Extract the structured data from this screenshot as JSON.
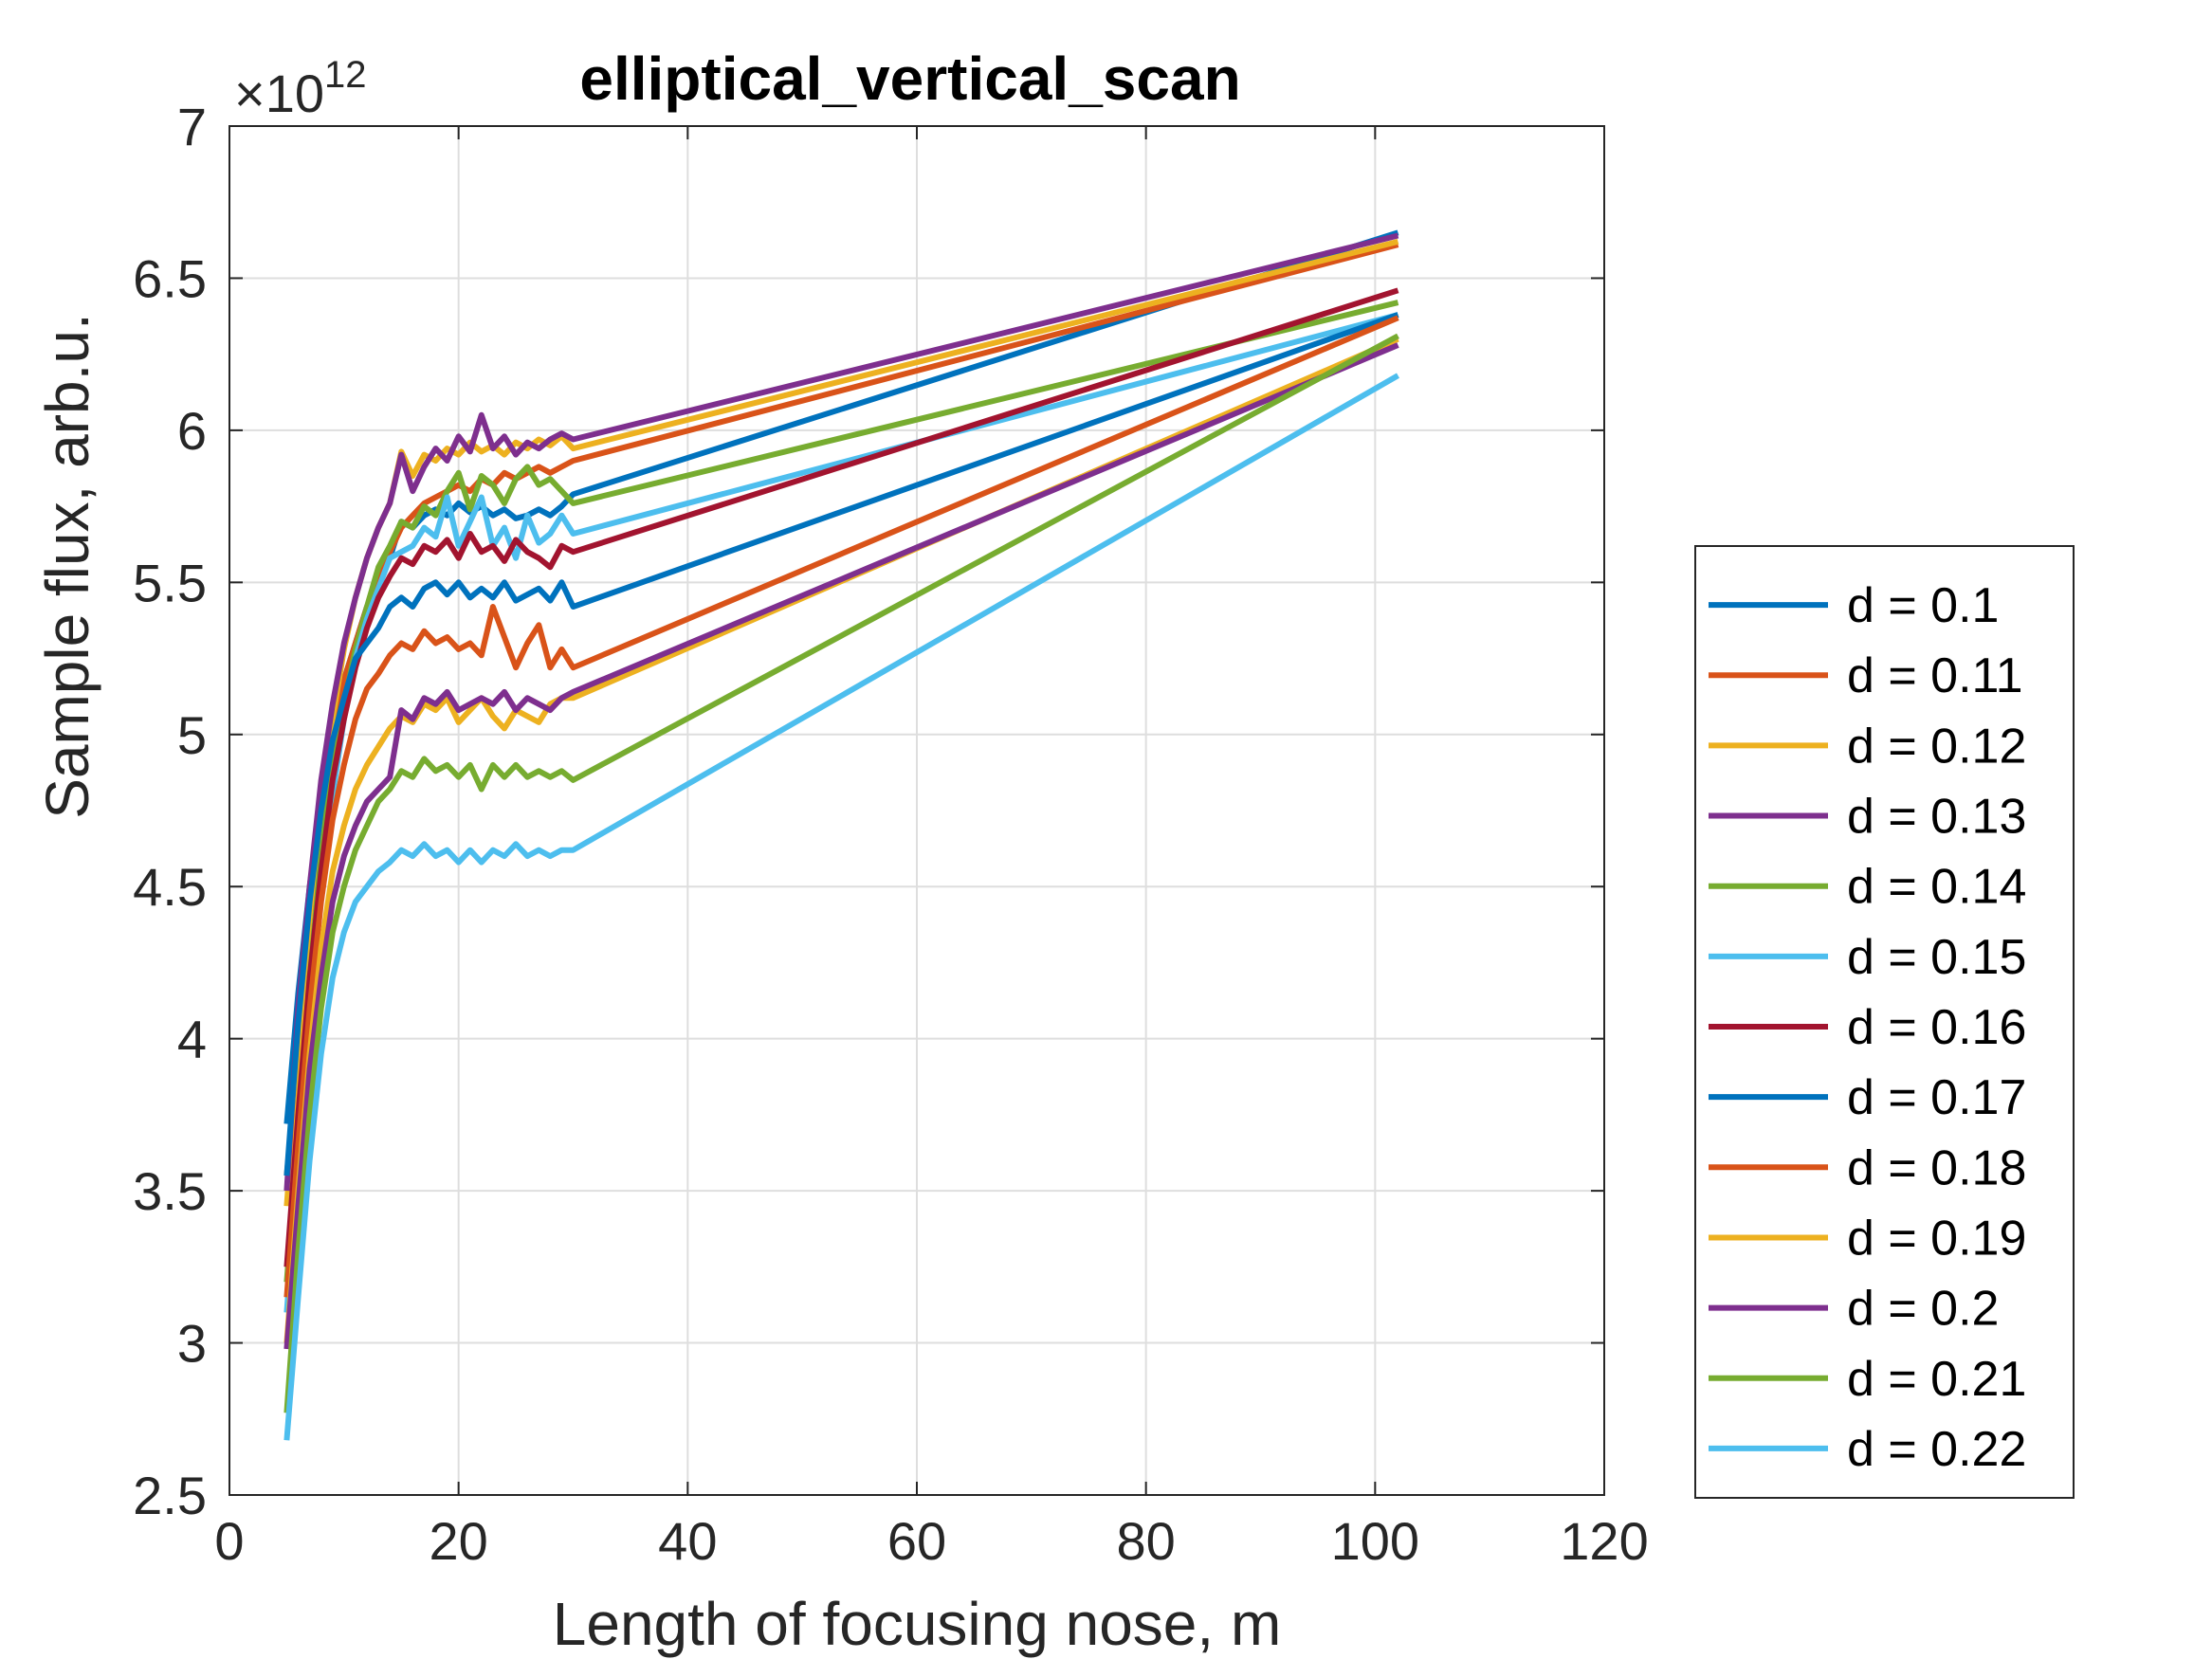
{
  "chart_data": {
    "type": "line",
    "title": "elliptical_vertical_scan",
    "xlabel": "Length of focusing nose, m",
    "ylabel": "Sample flux, arb.u.",
    "y_exponent_label": "×10",
    "y_exponent_power": "12",
    "xlim": [
      0,
      120
    ],
    "ylim": [
      2.5,
      7
    ],
    "xticks": [
      0,
      20,
      40,
      60,
      80,
      100,
      120
    ],
    "xtick_labels": [
      "0",
      "20",
      "40",
      "60",
      "80",
      "100",
      "120"
    ],
    "yticks": [
      2.5,
      3,
      3.5,
      4,
      4.5,
      5,
      5.5,
      6,
      6.5,
      7
    ],
    "ytick_labels": [
      "2.5",
      "3",
      "3.5",
      "4",
      "4.5",
      "5",
      "5.5",
      "6",
      "6.5",
      "7"
    ],
    "grid": true,
    "legend_position": "outside-right",
    "x": [
      5,
      6,
      7,
      8,
      9,
      10,
      11,
      12,
      13,
      14,
      15,
      16,
      17,
      18,
      19,
      20,
      21,
      22,
      23,
      24,
      25,
      26,
      27,
      28,
      29,
      30,
      102
    ],
    "series": [
      {
        "name": "d = 0.1",
        "color": "#0072BD",
        "values": [
          3.72,
          4.15,
          4.5,
          4.78,
          5.0,
          5.18,
          5.3,
          5.42,
          5.5,
          5.58,
          5.7,
          5.68,
          5.72,
          5.74,
          5.72,
          5.76,
          5.73,
          5.75,
          5.72,
          5.74,
          5.71,
          5.72,
          5.74,
          5.72,
          5.75,
          5.79,
          6.65
        ]
      },
      {
        "name": "d = 0.11",
        "color": "#D95319",
        "values": [
          3.55,
          3.95,
          4.4,
          4.7,
          4.98,
          5.18,
          5.3,
          5.42,
          5.5,
          5.6,
          5.68,
          5.72,
          5.76,
          5.78,
          5.8,
          5.82,
          5.8,
          5.84,
          5.82,
          5.86,
          5.84,
          5.86,
          5.88,
          5.86,
          5.88,
          5.9,
          6.61
        ]
      },
      {
        "name": "d = 0.12",
        "color": "#EDB120",
        "values": [
          3.45,
          3.95,
          4.4,
          4.75,
          5.05,
          5.28,
          5.45,
          5.58,
          5.68,
          5.76,
          5.93,
          5.85,
          5.92,
          5.9,
          5.94,
          5.92,
          5.96,
          5.93,
          5.95,
          5.92,
          5.96,
          5.94,
          5.97,
          5.95,
          5.98,
          5.94,
          6.62
        ]
      },
      {
        "name": "d = 0.13",
        "color": "#7E2F8E",
        "values": [
          3.5,
          4.1,
          4.5,
          4.85,
          5.1,
          5.3,
          5.45,
          5.58,
          5.68,
          5.76,
          5.92,
          5.8,
          5.88,
          5.94,
          5.9,
          5.98,
          5.93,
          6.05,
          5.94,
          5.98,
          5.92,
          5.96,
          5.94,
          5.97,
          5.99,
          5.97,
          6.64
        ]
      },
      {
        "name": "d = 0.14",
        "color": "#77AC30",
        "values": [
          3.2,
          3.7,
          4.2,
          4.6,
          4.9,
          5.1,
          5.28,
          5.42,
          5.55,
          5.62,
          5.7,
          5.68,
          5.75,
          5.72,
          5.8,
          5.86,
          5.74,
          5.85,
          5.82,
          5.76,
          5.84,
          5.88,
          5.82,
          5.84,
          5.8,
          5.76,
          6.42
        ]
      },
      {
        "name": "d = 0.15",
        "color": "#4DBEEE",
        "values": [
          3.1,
          3.6,
          4.1,
          4.5,
          4.8,
          5.05,
          5.25,
          5.38,
          5.48,
          5.58,
          5.6,
          5.62,
          5.68,
          5.65,
          5.78,
          5.62,
          5.7,
          5.78,
          5.62,
          5.68,
          5.58,
          5.72,
          5.63,
          5.66,
          5.72,
          5.66,
          6.38
        ]
      },
      {
        "name": "d = 0.16",
        "color": "#A2142F",
        "values": [
          3.25,
          3.75,
          4.2,
          4.55,
          4.85,
          5.05,
          5.22,
          5.35,
          5.45,
          5.52,
          5.58,
          5.56,
          5.62,
          5.6,
          5.64,
          5.58,
          5.66,
          5.6,
          5.62,
          5.57,
          5.64,
          5.6,
          5.58,
          5.55,
          5.62,
          5.6,
          6.46
        ]
      },
      {
        "name": "d = 0.17",
        "color": "#0072BD",
        "values": [
          3.55,
          4.05,
          4.45,
          4.75,
          4.98,
          5.12,
          5.25,
          5.3,
          5.35,
          5.42,
          5.45,
          5.42,
          5.48,
          5.5,
          5.46,
          5.5,
          5.45,
          5.48,
          5.45,
          5.5,
          5.44,
          5.46,
          5.48,
          5.44,
          5.5,
          5.42,
          6.38
        ]
      },
      {
        "name": "d = 0.18",
        "color": "#D95319",
        "values": [
          3.15,
          3.65,
          4.1,
          4.45,
          4.72,
          4.9,
          5.05,
          5.15,
          5.2,
          5.26,
          5.3,
          5.28,
          5.34,
          5.3,
          5.32,
          5.28,
          5.3,
          5.26,
          5.42,
          5.32,
          5.22,
          5.3,
          5.36,
          5.22,
          5.28,
          5.22,
          6.37
        ]
      },
      {
        "name": "d = 0.19",
        "color": "#EDB120",
        "values": [
          3.0,
          3.5,
          3.95,
          4.3,
          4.55,
          4.7,
          4.82,
          4.9,
          4.96,
          5.02,
          5.06,
          5.04,
          5.1,
          5.08,
          5.12,
          5.04,
          5.08,
          5.12,
          5.06,
          5.02,
          5.08,
          5.06,
          5.04,
          5.1,
          5.12,
          5.12,
          6.3
        ]
      },
      {
        "name": "d = 0.2",
        "color": "#7E2F8E",
        "values": [
          2.98,
          3.45,
          3.9,
          4.2,
          4.45,
          4.6,
          4.7,
          4.78,
          4.82,
          4.86,
          5.08,
          5.05,
          5.12,
          5.1,
          5.14,
          5.08,
          5.1,
          5.12,
          5.1,
          5.14,
          5.08,
          5.12,
          5.1,
          5.08,
          5.12,
          5.14,
          6.28
        ]
      },
      {
        "name": "d = 0.21",
        "color": "#77AC30",
        "values": [
          2.77,
          3.3,
          3.75,
          4.1,
          4.35,
          4.5,
          4.62,
          4.7,
          4.78,
          4.82,
          4.88,
          4.86,
          4.92,
          4.88,
          4.9,
          4.86,
          4.9,
          4.82,
          4.9,
          4.86,
          4.9,
          4.86,
          4.88,
          4.86,
          4.88,
          4.85,
          6.31
        ]
      },
      {
        "name": "d = 0.22",
        "color": "#4DBEEE",
        "values": [
          2.68,
          3.15,
          3.6,
          3.95,
          4.2,
          4.35,
          4.45,
          4.5,
          4.55,
          4.58,
          4.62,
          4.6,
          4.64,
          4.6,
          4.62,
          4.58,
          4.62,
          4.58,
          4.62,
          4.6,
          4.64,
          4.6,
          4.62,
          4.6,
          4.62,
          4.62,
          6.18
        ]
      }
    ]
  }
}
